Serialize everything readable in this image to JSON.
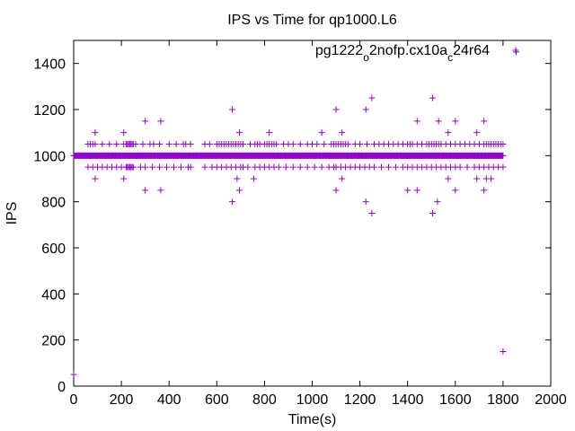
{
  "chart_data": {
    "type": "scatter",
    "title": "IPS vs Time for qp1000.L6",
    "xlabel": "Time(s)",
    "ylabel": "IPS",
    "xlim": [
      0,
      2000
    ],
    "ylim": [
      0,
      1500
    ],
    "xticks": [
      0,
      200,
      400,
      600,
      800,
      1000,
      1200,
      1400,
      1600,
      1800,
      2000
    ],
    "yticks": [
      0,
      200,
      400,
      600,
      800,
      1000,
      1200,
      1400
    ],
    "grid": false,
    "legend_position": "top-right",
    "marker": "plus",
    "color": "#9400d3",
    "series": [
      {
        "name_parts": [
          "pg1222",
          "o",
          "2nofp.cx10a",
          "c",
          "24r64"
        ],
        "dense_band": {
          "x_range": [
            0,
            1800
          ],
          "step": 3,
          "y": 1000
        },
        "points": [
          [
            0,
            50
          ],
          [
            60,
            1050
          ],
          [
            70,
            1050
          ],
          [
            80,
            1050
          ],
          [
            90,
            1050
          ],
          [
            120,
            1050
          ],
          [
            150,
            1050
          ],
          [
            180,
            1050
          ],
          [
            210,
            1050
          ],
          [
            220,
            1050
          ],
          [
            225,
            1050
          ],
          [
            230,
            1050
          ],
          [
            235,
            1050
          ],
          [
            240,
            1050
          ],
          [
            245,
            1050
          ],
          [
            250,
            1050
          ],
          [
            260,
            1050
          ],
          [
            290,
            1050
          ],
          [
            320,
            1050
          ],
          [
            335,
            1050
          ],
          [
            360,
            1050
          ],
          [
            400,
            1050
          ],
          [
            430,
            1050
          ],
          [
            460,
            1050
          ],
          [
            470,
            1050
          ],
          [
            490,
            1050
          ],
          [
            550,
            1050
          ],
          [
            570,
            1050
          ],
          [
            600,
            1050
          ],
          [
            610,
            1050
          ],
          [
            620,
            1050
          ],
          [
            630,
            1050
          ],
          [
            640,
            1050
          ],
          [
            650,
            1050
          ],
          [
            660,
            1050
          ],
          [
            670,
            1050
          ],
          [
            680,
            1050
          ],
          [
            690,
            1050
          ],
          [
            700,
            1050
          ],
          [
            710,
            1050
          ],
          [
            740,
            1050
          ],
          [
            760,
            1050
          ],
          [
            770,
            1050
          ],
          [
            780,
            1050
          ],
          [
            800,
            1050
          ],
          [
            810,
            1050
          ],
          [
            820,
            1050
          ],
          [
            830,
            1050
          ],
          [
            840,
            1050
          ],
          [
            850,
            1050
          ],
          [
            880,
            1050
          ],
          [
            900,
            1050
          ],
          [
            920,
            1050
          ],
          [
            950,
            1050
          ],
          [
            980,
            1050
          ],
          [
            1000,
            1050
          ],
          [
            1020,
            1050
          ],
          [
            1050,
            1050
          ],
          [
            1080,
            1050
          ],
          [
            1090,
            1050
          ],
          [
            1100,
            1050
          ],
          [
            1110,
            1050
          ],
          [
            1120,
            1050
          ],
          [
            1130,
            1050
          ],
          [
            1140,
            1050
          ],
          [
            1150,
            1050
          ],
          [
            1180,
            1050
          ],
          [
            1200,
            1050
          ],
          [
            1230,
            1050
          ],
          [
            1260,
            1050
          ],
          [
            1280,
            1050
          ],
          [
            1300,
            1050
          ],
          [
            1320,
            1050
          ],
          [
            1340,
            1050
          ],
          [
            1360,
            1050
          ],
          [
            1380,
            1050
          ],
          [
            1400,
            1050
          ],
          [
            1410,
            1050
          ],
          [
            1420,
            1050
          ],
          [
            1440,
            1050
          ],
          [
            1460,
            1050
          ],
          [
            1480,
            1050
          ],
          [
            1490,
            1050
          ],
          [
            1500,
            1050
          ],
          [
            1510,
            1050
          ],
          [
            1520,
            1050
          ],
          [
            1530,
            1050
          ],
          [
            1540,
            1050
          ],
          [
            1560,
            1050
          ],
          [
            1580,
            1050
          ],
          [
            1600,
            1050
          ],
          [
            1620,
            1050
          ],
          [
            1640,
            1050
          ],
          [
            1660,
            1050
          ],
          [
            1680,
            1050
          ],
          [
            1700,
            1050
          ],
          [
            1720,
            1050
          ],
          [
            1730,
            1050
          ],
          [
            1740,
            1050
          ],
          [
            1750,
            1050
          ],
          [
            1760,
            1050
          ],
          [
            1770,
            1050
          ],
          [
            1780,
            1050
          ],
          [
            1790,
            1050
          ],
          [
            1800,
            1050
          ],
          [
            60,
            950
          ],
          [
            80,
            950
          ],
          [
            100,
            950
          ],
          [
            120,
            950
          ],
          [
            140,
            950
          ],
          [
            160,
            950
          ],
          [
            180,
            950
          ],
          [
            200,
            950
          ],
          [
            220,
            950
          ],
          [
            225,
            950
          ],
          [
            230,
            950
          ],
          [
            235,
            950
          ],
          [
            240,
            950
          ],
          [
            245,
            950
          ],
          [
            250,
            950
          ],
          [
            280,
            950
          ],
          [
            300,
            950
          ],
          [
            330,
            950
          ],
          [
            360,
            950
          ],
          [
            390,
            950
          ],
          [
            420,
            950
          ],
          [
            450,
            950
          ],
          [
            480,
            950
          ],
          [
            490,
            950
          ],
          [
            550,
            950
          ],
          [
            580,
            950
          ],
          [
            600,
            950
          ],
          [
            620,
            950
          ],
          [
            640,
            950
          ],
          [
            660,
            950
          ],
          [
            680,
            950
          ],
          [
            700,
            950
          ],
          [
            710,
            950
          ],
          [
            730,
            950
          ],
          [
            760,
            950
          ],
          [
            780,
            950
          ],
          [
            800,
            950
          ],
          [
            820,
            950
          ],
          [
            840,
            950
          ],
          [
            860,
            950
          ],
          [
            890,
            950
          ],
          [
            920,
            950
          ],
          [
            950,
            950
          ],
          [
            980,
            950
          ],
          [
            1010,
            950
          ],
          [
            1040,
            950
          ],
          [
            1070,
            950
          ],
          [
            1090,
            950
          ],
          [
            1100,
            950
          ],
          [
            1120,
            950
          ],
          [
            1140,
            950
          ],
          [
            1160,
            950
          ],
          [
            1180,
            950
          ],
          [
            1200,
            950
          ],
          [
            1220,
            950
          ],
          [
            1240,
            950
          ],
          [
            1260,
            950
          ],
          [
            1290,
            950
          ],
          [
            1320,
            950
          ],
          [
            1350,
            950
          ],
          [
            1380,
            950
          ],
          [
            1400,
            950
          ],
          [
            1420,
            950
          ],
          [
            1440,
            950
          ],
          [
            1460,
            950
          ],
          [
            1480,
            950
          ],
          [
            1500,
            950
          ],
          [
            1520,
            950
          ],
          [
            1540,
            950
          ],
          [
            1560,
            950
          ],
          [
            1580,
            950
          ],
          [
            1600,
            950
          ],
          [
            1620,
            950
          ],
          [
            1650,
            950
          ],
          [
            1680,
            950
          ],
          [
            1700,
            950
          ],
          [
            1720,
            950
          ],
          [
            1740,
            950
          ],
          [
            1760,
            950
          ],
          [
            1780,
            950
          ],
          [
            1800,
            950
          ],
          [
            90,
            1100
          ],
          [
            210,
            1100
          ],
          [
            300,
            1150
          ],
          [
            365,
            1150
          ],
          [
            665,
            1200
          ],
          [
            695,
            1100
          ],
          [
            820,
            1100
          ],
          [
            1040,
            1100
          ],
          [
            1100,
            1200
          ],
          [
            1125,
            1100
          ],
          [
            1225,
            1200
          ],
          [
            1250,
            1250
          ],
          [
            1440,
            1150
          ],
          [
            1505,
            1250
          ],
          [
            1530,
            1150
          ],
          [
            1570,
            1100
          ],
          [
            1600,
            1150
          ],
          [
            1690,
            1100
          ],
          [
            1720,
            1150
          ],
          [
            90,
            900
          ],
          [
            210,
            900
          ],
          [
            300,
            850
          ],
          [
            365,
            850
          ],
          [
            665,
            800
          ],
          [
            685,
            900
          ],
          [
            695,
            850
          ],
          [
            755,
            900
          ],
          [
            1100,
            850
          ],
          [
            1125,
            900
          ],
          [
            1225,
            800
          ],
          [
            1250,
            750
          ],
          [
            1400,
            850
          ],
          [
            1440,
            850
          ],
          [
            1505,
            750
          ],
          [
            1525,
            800
          ],
          [
            1570,
            900
          ],
          [
            1600,
            850
          ],
          [
            1690,
            900
          ],
          [
            1720,
            850
          ],
          [
            1730,
            900
          ],
          [
            1750,
            900
          ],
          [
            1855,
            1450
          ],
          [
            1800,
            150
          ]
        ]
      }
    ]
  }
}
